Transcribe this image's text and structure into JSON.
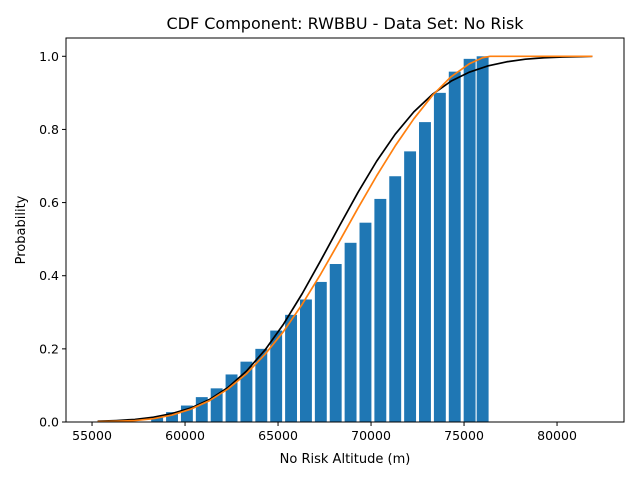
{
  "chart_data": {
    "type": "bar",
    "title": "CDF Component: RWBBU - Data Set: No Risk",
    "xlabel": "No Risk Altitude (m)",
    "ylabel": "Probability",
    "xlim": [
      53600,
      83600
    ],
    "ylim": [
      0,
      1.05
    ],
    "xticks": [
      55000,
      60000,
      65000,
      70000,
      75000,
      80000
    ],
    "xtick_labels": [
      "55000",
      "60000",
      "65000",
      "70000",
      "75000",
      "80000"
    ],
    "yticks": [
      0.0,
      0.2,
      0.4,
      0.6,
      0.8,
      1.0
    ],
    "ytick_labels": [
      "0.0",
      "0.2",
      "0.4",
      "0.6",
      "0.8",
      "1.0"
    ],
    "grid": false,
    "bar_color": "#1f77b4",
    "bar_width": 640,
    "bars": {
      "x": [
        58500,
        59300,
        60100,
        60900,
        61700,
        62500,
        63300,
        64100,
        64900,
        65700,
        66500,
        67300,
        68100,
        68900,
        69700,
        70500,
        71300,
        72100,
        72900,
        73700,
        74500,
        75300,
        76000
      ],
      "values": [
        0.012,
        0.027,
        0.045,
        0.068,
        0.092,
        0.13,
        0.165,
        0.2,
        0.25,
        0.293,
        0.335,
        0.383,
        0.432,
        0.49,
        0.545,
        0.61,
        0.672,
        0.74,
        0.82,
        0.9,
        0.958,
        0.993,
        1.0
      ]
    },
    "series": [
      {
        "color": "#000000",
        "x": [
          55300,
          56300,
          57300,
          58300,
          59300,
          60300,
          61300,
          62300,
          63300,
          64300,
          65300,
          66300,
          67300,
          68300,
          69300,
          70300,
          71300,
          72300,
          73300,
          74300,
          75300,
          76300,
          77300,
          78300,
          79300,
          80300,
          81300,
          81900
        ],
        "y": [
          0.002,
          0.004,
          0.007,
          0.013,
          0.023,
          0.038,
          0.061,
          0.094,
          0.139,
          0.197,
          0.268,
          0.351,
          0.442,
          0.536,
          0.628,
          0.713,
          0.787,
          0.848,
          0.896,
          0.932,
          0.957,
          0.974,
          0.985,
          0.992,
          0.996,
          0.998,
          0.999,
          1.0
        ]
      },
      {
        "color": "#ff7f0e",
        "x": [
          55300,
          56300,
          57300,
          58300,
          59300,
          60300,
          61300,
          62300,
          63300,
          64300,
          65300,
          66300,
          67300,
          68300,
          69300,
          70300,
          71300,
          72300,
          73300,
          74300,
          75300,
          76000,
          76400,
          77000,
          78000,
          80000,
          81900
        ],
        "y": [
          0.001,
          0.002,
          0.004,
          0.009,
          0.019,
          0.035,
          0.058,
          0.09,
          0.132,
          0.185,
          0.248,
          0.322,
          0.405,
          0.494,
          0.585,
          0.673,
          0.755,
          0.829,
          0.893,
          0.944,
          0.98,
          0.996,
          1.0,
          1.0,
          1.0,
          1.0,
          1.0
        ]
      }
    ]
  }
}
